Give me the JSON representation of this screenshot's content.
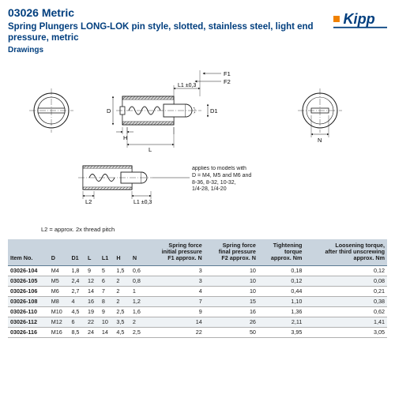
{
  "header": {
    "part_number": "03026 Metric",
    "title": "Spring Plungers LONG-LOK pin style, slotted, stainless steel, light end pressure, metric",
    "drawings_label": "Drawings",
    "logo_text": "Kipp",
    "logo_blue": "#003e7e",
    "logo_orange": "#f08000"
  },
  "diagram": {
    "labels": {
      "F1": "F1",
      "F2": "F2",
      "L1tol": "L1 ±0,3",
      "D": "D",
      "D1": "D1",
      "H": "H",
      "L": "L",
      "L2": "L2",
      "N": "N"
    },
    "applies_note": "applies to models with\nD = M4, M5 and M6 and\n8-36, 8-32, 10-32,\n1/4-28, 1/4-20",
    "stroke": "#1a1a1a",
    "hatch": "#1a1a1a",
    "bg": "#ffffff"
  },
  "footnote": "L2 = approx. 2x thread pitch",
  "table": {
    "header_bg": "#c9d4de",
    "row_border": "#b0b0b0",
    "columns": [
      "Item No.",
      "D",
      "D1",
      "L",
      "L1",
      "H",
      "N",
      "Spring force\ninitial pressure\nF1 approx. N",
      "Spring force\nfinal pressure\nF2 approx. N",
      "Tightening\ntorque\napprox. Nm",
      "Loosening torque,\nafter third unscrewing\napprox. Nm"
    ],
    "col_align": [
      "left",
      "left",
      "left",
      "left",
      "left",
      "left",
      "left",
      "right",
      "right",
      "right",
      "right"
    ],
    "rows": [
      [
        "03026-104",
        "M4",
        "1,8",
        "9",
        "5",
        "1,5",
        "0,6",
        "3",
        "10",
        "0,18",
        "0,12"
      ],
      [
        "03026-105",
        "M5",
        "2,4",
        "12",
        "6",
        "2",
        "0,8",
        "3",
        "10",
        "0,12",
        "0,08"
      ],
      [
        "03026-106",
        "M6",
        "2,7",
        "14",
        "7",
        "2",
        "1",
        "4",
        "10",
        "0,44",
        "0,21"
      ],
      [
        "03026-108",
        "M8",
        "4",
        "16",
        "8",
        "2",
        "1,2",
        "7",
        "15",
        "1,10",
        "0,38"
      ],
      [
        "03026-110",
        "M10",
        "4,5",
        "19",
        "9",
        "2,5",
        "1,6",
        "9",
        "16",
        "1,36",
        "0,62"
      ],
      [
        "03026-112",
        "M12",
        "6",
        "22",
        "10",
        "3,5",
        "2",
        "14",
        "26",
        "2,11",
        "1,41"
      ],
      [
        "03026-116",
        "M16",
        "8,5",
        "24",
        "14",
        "4,5",
        "2,5",
        "22",
        "50",
        "3,95",
        "3,05"
      ]
    ]
  }
}
